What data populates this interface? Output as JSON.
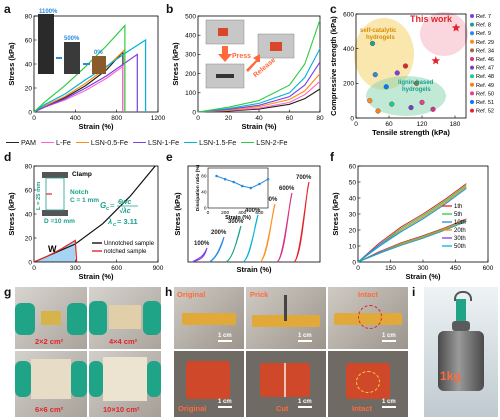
{
  "panels": {
    "a": {
      "label": "a",
      "xlabel": "Strain (%)",
      "ylabel": "Stress (kPa)",
      "inset_labels": [
        "1100%",
        "500%",
        "0%"
      ],
      "xticks": [
        0,
        400,
        800,
        1200
      ],
      "yticks": [
        0,
        20,
        40,
        60,
        80
      ]
    },
    "b": {
      "label": "b",
      "xlabel": "Strain (%)",
      "ylabel": "Stress (kPa)",
      "press_label": "Press",
      "release_label": "Release",
      "xticks": [
        0,
        20,
        40,
        60,
        80
      ],
      "yticks": [
        0,
        100,
        200,
        300,
        400,
        500
      ]
    },
    "c": {
      "label": "c",
      "xlabel": "Tensile strength (kPa)",
      "ylabel": "Compressive strength (kPa)",
      "this_work": "This work",
      "group1": "self-catalytic hydrogels",
      "group2": "lignin-based hydrogels",
      "refs": [
        "Ref. 7",
        "Ref. 8",
        "Ref. 9",
        "Ref. 29",
        "Ref. 34",
        "Ref. 46",
        "Ref. 47",
        "Ref. 48",
        "Ref. 49",
        "Ref. 50",
        "Ref. 51",
        "Ref. 52"
      ],
      "xticks": [
        0,
        60,
        120,
        180
      ],
      "yticks": [
        0,
        200,
        400,
        600
      ]
    },
    "d": {
      "label": "d",
      "xlabel": "Strain (%)",
      "ylabel": "Stress (kPa)",
      "clamp": "Clamp",
      "notch": "Notch",
      "c_val": "C = 1 mm",
      "l_val": "L = 25 mm",
      "d_val": "D =10 mm",
      "formula_lhs": "G",
      "formula_sub": "c",
      "formula_num": "6wc",
      "formula_den": "√λc",
      "lambda": "λ",
      "lambda_sub": "c",
      "lambda_val": "= 3.11",
      "w_label": "W",
      "legend": [
        "Unnotched sample",
        "notched sample"
      ],
      "xticks": [
        0,
        300,
        600,
        900
      ],
      "yticks": [
        0,
        20,
        40,
        60,
        80
      ]
    },
    "e": {
      "label": "e",
      "xlabel": "Strain (%)",
      "ylabel": "Stress (kPa)",
      "inset_ylabel": "Dissipation ratio (%)",
      "inset_xlabel": "Strain (%)",
      "inset_xticks": [
        0,
        200,
        400,
        600
      ],
      "inset_yticks": [
        0,
        40,
        80
      ],
      "curve_labels": [
        "100%",
        "200%",
        "300%",
        "400%",
        "500%",
        "600%",
        "700%"
      ]
    },
    "f": {
      "label": "f",
      "xlabel": "Strain (%)",
      "ylabel": "Stress (kPa)",
      "legend": [
        "1th",
        "5th",
        "10th",
        "20th",
        "30th",
        "50th"
      ],
      "xticks": [
        0,
        150,
        300,
        450,
        600
      ],
      "yticks": [
        0,
        10,
        20,
        30,
        40,
        50,
        60
      ]
    },
    "g": {
      "label": "g",
      "captions": [
        "2×2 cm²",
        "4×4 cm²",
        "6×6 cm²",
        "10×10 cm²"
      ]
    },
    "h": {
      "label": "h",
      "top": [
        "Original",
        "Prick",
        "Intact"
      ],
      "bottom": [
        "Original",
        "Cut",
        "Intact"
      ],
      "scale": "1 cm"
    },
    "i": {
      "label": "i",
      "weight": "1kg"
    }
  },
  "legend_main": [
    "PAM",
    "L-Fe",
    "LSN-0.5-Fe",
    "LSN-1-Fe",
    "LSN-1.5-Fe",
    "LSN-2-Fe"
  ],
  "colors": {
    "PAM": "#222222",
    "L-Fe": "#ff66cc",
    "LSN-0.5-Fe": "#ff8c1a",
    "LSN-1-Fe": "#7b3fe4",
    "LSN-1.5-Fe": "#00b4d8",
    "LSN-2-Fe": "#2ecc40",
    "red": "#e4242b",
    "label_red": "#ff6a3d",
    "teal": "#1aa08c"
  },
  "chart_data": [
    {
      "panel": "a",
      "type": "line",
      "xlabel": "Strain (%)",
      "ylabel": "Stress (kPa)",
      "xlim": [
        0,
        1200
      ],
      "ylim": [
        0,
        80
      ],
      "series": [
        {
          "name": "PAM",
          "x": [
            0,
            100,
            300,
            500,
            700,
            860,
            860
          ],
          "y": [
            0,
            4,
            12,
            22,
            35,
            50,
            0
          ]
        },
        {
          "name": "L-Fe",
          "x": [
            0,
            100,
            300,
            500,
            700,
            860,
            860
          ],
          "y": [
            0,
            4,
            10,
            18,
            28,
            38,
            0
          ]
        },
        {
          "name": "LSN-0.5-Fe",
          "x": [
            0,
            100,
            300,
            500,
            700,
            880,
            880
          ],
          "y": [
            0,
            5,
            13,
            24,
            37,
            52,
            0
          ]
        },
        {
          "name": "LSN-1-Fe",
          "x": [
            0,
            100,
            300,
            500,
            700,
            1000,
            1000
          ],
          "y": [
            0,
            4,
            11,
            20,
            30,
            48,
            0
          ]
        },
        {
          "name": "LSN-1.5-Fe",
          "x": [
            0,
            100,
            300,
            500,
            700,
            900,
            1080,
            1080
          ],
          "y": [
            0,
            6,
            15,
            27,
            38,
            50,
            60,
            0
          ]
        },
        {
          "name": "LSN-2-Fe",
          "x": [
            0,
            100,
            300,
            500,
            700,
            880,
            880
          ],
          "y": [
            0,
            8,
            22,
            38,
            55,
            72,
            0
          ]
        }
      ]
    },
    {
      "panel": "b",
      "type": "line",
      "xlabel": "Strain (%)",
      "ylabel": "Stress (kPa)",
      "xlim": [
        0,
        80
      ],
      "ylim": [
        0,
        500
      ],
      "series": [
        {
          "name": "PAM",
          "x": [
            0,
            20,
            40,
            60,
            70,
            80
          ],
          "y": [
            0,
            5,
            15,
            40,
            70,
            120
          ]
        },
        {
          "name": "L-Fe",
          "x": [
            0,
            20,
            40,
            60,
            70,
            80
          ],
          "y": [
            0,
            8,
            20,
            50,
            90,
            160
          ]
        },
        {
          "name": "LSN-0.5-Fe",
          "x": [
            0,
            20,
            40,
            60,
            70,
            80
          ],
          "y": [
            0,
            10,
            28,
            65,
            110,
            200
          ]
        },
        {
          "name": "LSN-1-Fe",
          "x": [
            0,
            20,
            40,
            60,
            70,
            80
          ],
          "y": [
            0,
            14,
            35,
            80,
            140,
            260
          ]
        },
        {
          "name": "LSN-1.5-Fe",
          "x": [
            0,
            20,
            40,
            60,
            70,
            80
          ],
          "y": [
            0,
            18,
            45,
            100,
            180,
            330
          ]
        },
        {
          "name": "LSN-2-Fe",
          "x": [
            0,
            20,
            40,
            60,
            70,
            80
          ],
          "y": [
            0,
            25,
            60,
            140,
            250,
            480
          ]
        }
      ]
    },
    {
      "panel": "c",
      "type": "scatter",
      "xlabel": "Tensile strength (kPa)",
      "ylabel": "Compressive strength (kPa)",
      "xlim": [
        0,
        200
      ],
      "ylim": [
        0,
        600
      ],
      "points": [
        {
          "name": "Ref. 7",
          "x": 90,
          "y": 300
        },
        {
          "name": "Ref. 8",
          "x": 75,
          "y": 260
        },
        {
          "name": "Ref. 9",
          "x": 30,
          "y": 430
        },
        {
          "name": "Ref. 29",
          "x": 35,
          "y": 250
        },
        {
          "name": "Ref. 34",
          "x": 25,
          "y": 100
        },
        {
          "name": "Ref. 46",
          "x": 110,
          "y": 200
        },
        {
          "name": "Ref. 47",
          "x": 140,
          "y": 50
        },
        {
          "name": "Ref. 48",
          "x": 100,
          "y": 60
        },
        {
          "name": "Ref. 49",
          "x": 65,
          "y": 80
        },
        {
          "name": "Ref. 50",
          "x": 40,
          "y": 40
        },
        {
          "name": "Ref. 51",
          "x": 120,
          "y": 90
        },
        {
          "name": "Ref. 52",
          "x": 55,
          "y": 180
        },
        {
          "name": "This work",
          "x": 182,
          "y": 520
        },
        {
          "name": "This work",
          "x": 145,
          "y": 330
        }
      ]
    },
    {
      "panel": "d",
      "type": "line",
      "xlabel": "Strain (%)",
      "ylabel": "Stress (kPa)",
      "xlim": [
        0,
        900
      ],
      "ylim": [
        0,
        80
      ],
      "series": [
        {
          "name": "Unnotched sample",
          "x": [
            0,
            100,
            300,
            500,
            700,
            880
          ],
          "y": [
            0,
            5,
            15,
            32,
            55,
            80
          ]
        },
        {
          "name": "notched sample",
          "x": [
            0,
            100,
            200,
            300,
            310
          ],
          "y": [
            0,
            5,
            11,
            18,
            0
          ]
        }
      ]
    },
    {
      "panel": "e",
      "type": "line",
      "xlabel": "Strain (%)",
      "ylabel": "Stress (kPa)",
      "series_labels": [
        "100%",
        "200%",
        "300%",
        "400%",
        "500%",
        "600%",
        "700%"
      ],
      "inset": {
        "x": [
          100,
          200,
          300,
          400,
          500,
          600,
          700
        ],
        "y": [
          80,
          72,
          65,
          55,
          50,
          60,
          72
        ]
      }
    },
    {
      "panel": "f",
      "type": "line",
      "xlabel": "Strain (%)",
      "ylabel": "Stress (kPa)",
      "xlim": [
        0,
        600
      ],
      "ylim": [
        0,
        60
      ],
      "series": [
        {
          "name": "1th",
          "x": [
            0,
            100,
            200,
            300,
            400,
            500
          ],
          "y": [
            0,
            12,
            22,
            30,
            39,
            49
          ]
        },
        {
          "name": "5th",
          "x": [
            0,
            100,
            200,
            300,
            400,
            500
          ],
          "y": [
            0,
            11,
            21,
            29,
            38,
            48
          ]
        },
        {
          "name": "10th",
          "x": [
            0,
            100,
            200,
            300,
            400,
            500
          ],
          "y": [
            0,
            11,
            20,
            28,
            37,
            47
          ]
        },
        {
          "name": "20th",
          "x": [
            0,
            100,
            200,
            300,
            400,
            500
          ],
          "y": [
            0,
            10,
            20,
            28,
            37,
            47
          ]
        },
        {
          "name": "30th",
          "x": [
            0,
            100,
            200,
            300,
            400,
            500
          ],
          "y": [
            0,
            10,
            19,
            27,
            36,
            46
          ]
        },
        {
          "name": "50th",
          "x": [
            0,
            100,
            200,
            300,
            400,
            500
          ],
          "y": [
            0,
            10,
            19,
            27,
            36,
            46
          ]
        }
      ]
    }
  ]
}
